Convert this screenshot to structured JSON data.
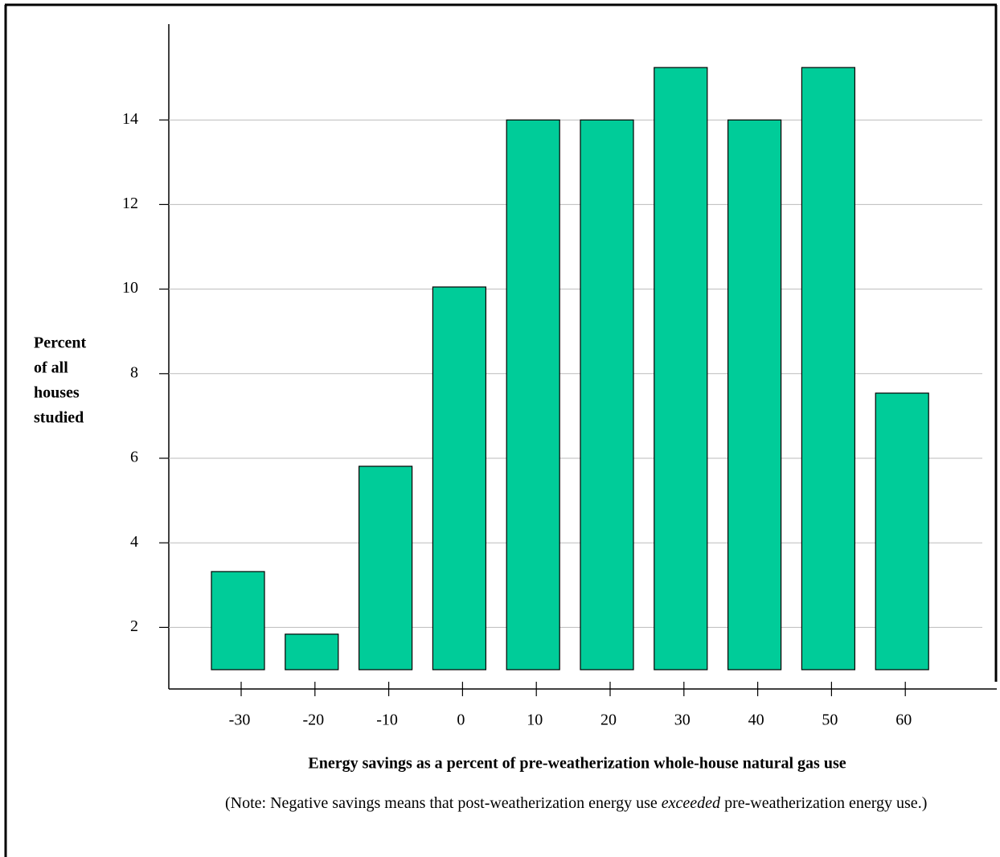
{
  "chart_data": {
    "type": "bar",
    "y_label_lines": [
      "Percent",
      "of all",
      "houses",
      "studied"
    ],
    "x_label": "Energy savings as a percent of pre-weatherization whole-house natural gas use",
    "note_parts": [
      "(Note: Negative savings means that post-weatherization energy use ",
      "exceeded",
      " pre-weatherization energy use.)"
    ],
    "categories": [
      "-30",
      "-20",
      "-10",
      "0",
      "10",
      "20",
      "30",
      "40",
      "50",
      "60"
    ],
    "values": [
      3.32,
      1.84,
      5.81,
      10.05,
      14,
      14,
      15.24,
      14,
      15.24,
      7.54
    ],
    "color": "#00cc99",
    "ylim": [
      1,
      16.3
    ],
    "yticks": [
      2,
      4,
      6,
      8,
      10,
      12,
      14
    ],
    "grid": true
  }
}
